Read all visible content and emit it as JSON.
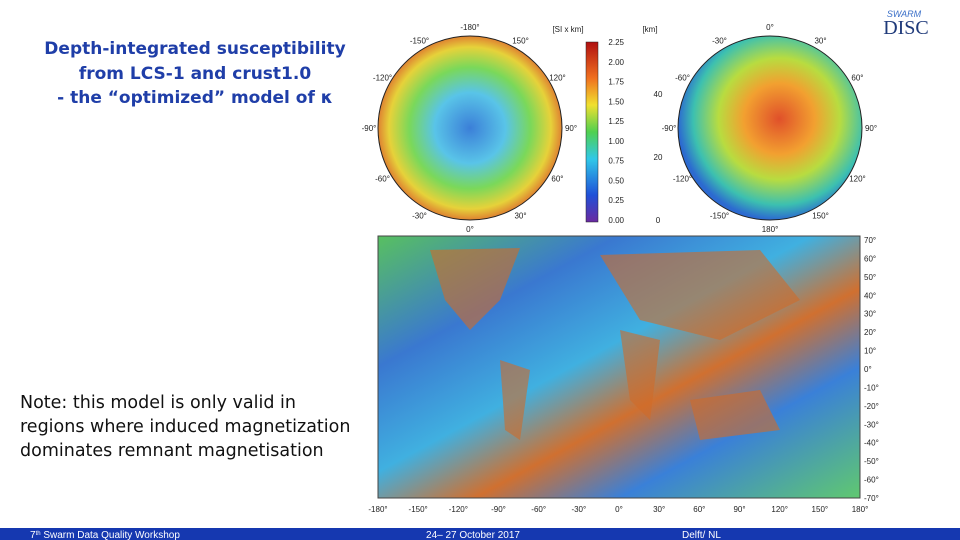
{
  "header": {
    "title_lines": [
      "Depth-integrated susceptibility",
      "from LCS-1 and crust1.0",
      "- the “optimized” model of κ"
    ]
  },
  "logo": {
    "top": "SWARM",
    "bottom": "DISC"
  },
  "note": [
    "Note: this model is only valid in",
    "regions where induced magnetization",
    "dominates remnant magnetisation"
  ],
  "figure": {
    "colorbar": {
      "unit_left": "[SI x km]",
      "unit_right": "[km]",
      "ticks_left": [
        "2.25",
        "2.00",
        "1.75",
        "1.50",
        "1.25",
        "1.00",
        "0.75",
        "0.50",
        "0.25",
        "0.00"
      ],
      "ticks_right": [
        "40",
        "20",
        "0"
      ]
    },
    "north_polar_labels": [
      "-180°",
      "150°",
      "120°",
      "90°",
      "60°",
      "30°",
      "0°",
      "-30°",
      "-60°",
      "-90°",
      "-120°",
      "-150°"
    ],
    "south_polar_labels": [
      "0°",
      "30°",
      "60°",
      "90°",
      "120°",
      "150°",
      "180°",
      "-150°",
      "-120°",
      "-90°",
      "-60°",
      "-30°"
    ],
    "lat_labels": [
      "70°",
      "60°",
      "50°",
      "40°",
      "30°",
      "20°",
      "10°",
      "0°",
      "-10°",
      "-20°",
      "-30°",
      "-40°",
      "-50°",
      "-60°",
      "-70°"
    ],
    "lon_labels": [
      "-180°",
      "-150°",
      "-120°",
      "-90°",
      "-60°",
      "-30°",
      "0°",
      "30°",
      "60°",
      "90°",
      "120°",
      "150°",
      "180°"
    ]
  },
  "footer": {
    "event_number": "7",
    "event_suffix": "th",
    "event_name": " Swarm Data Quality Workshop",
    "dates": "24– 27 October 2017",
    "place": "Delft/ NL"
  }
}
